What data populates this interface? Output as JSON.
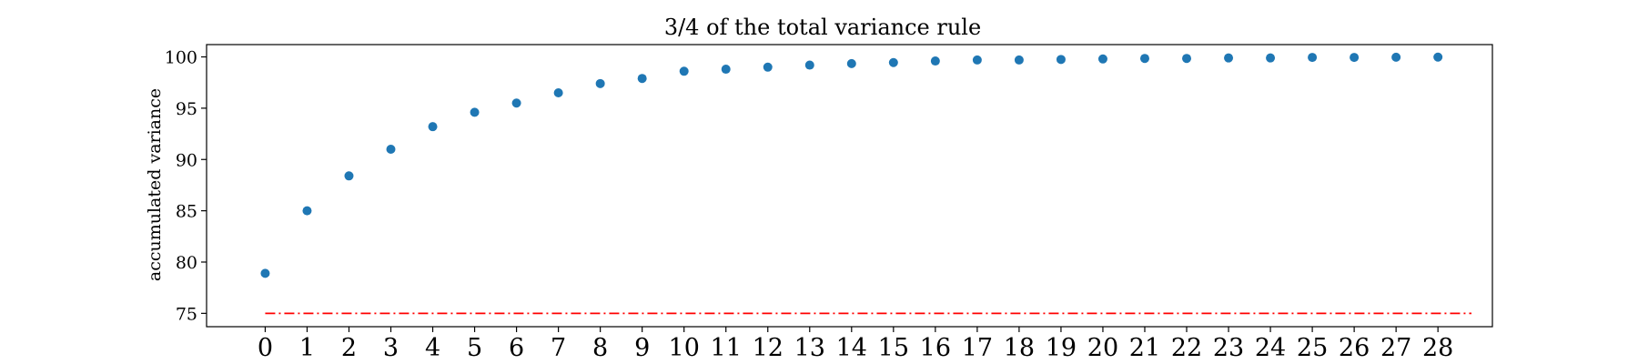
{
  "chart_data": {
    "type": "scatter",
    "title": "3/4 of the total variance rule",
    "xlabel": "",
    "ylabel": "accumulated variance",
    "x": [
      0,
      1,
      2,
      3,
      4,
      5,
      6,
      7,
      8,
      9,
      10,
      11,
      12,
      13,
      14,
      15,
      16,
      17,
      18,
      19,
      20,
      21,
      22,
      23,
      24,
      25,
      26,
      27,
      28
    ],
    "y": [
      78.9,
      85.0,
      88.4,
      91.0,
      93.2,
      94.6,
      95.5,
      96.5,
      97.4,
      97.9,
      98.6,
      98.8,
      99.0,
      99.2,
      99.35,
      99.45,
      99.6,
      99.7,
      99.7,
      99.75,
      99.8,
      99.85,
      99.85,
      99.9,
      99.9,
      99.95,
      99.95,
      99.97,
      99.98
    ],
    "series_color": "#1f77b4",
    "threshold": {
      "y": 75,
      "x_start": 0,
      "x_end": 28.8,
      "color": "#ff0000",
      "style": "dash-dot"
    },
    "xlim": [
      -1.4,
      29.3
    ],
    "ylim": [
      73.7,
      101.2
    ],
    "xticks": [
      "0",
      "1",
      "2",
      "3",
      "4",
      "5",
      "6",
      "7",
      "8",
      "9",
      "10",
      "11",
      "12",
      "13",
      "14",
      "15",
      "16",
      "17",
      "18",
      "19",
      "20",
      "21",
      "22",
      "23",
      "24",
      "25",
      "26",
      "27",
      "28"
    ],
    "yticks": [
      "75",
      "80",
      "85",
      "90",
      "95",
      "100"
    ],
    "grid": false,
    "legend": "none"
  }
}
